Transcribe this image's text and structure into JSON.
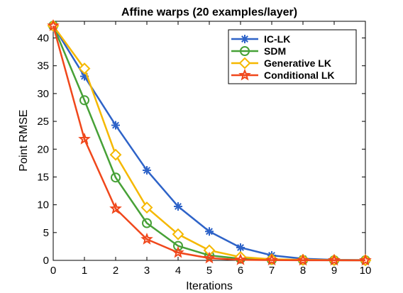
{
  "chart_data": {
    "type": "line",
    "title": "Affine warps (20 examples/layer)",
    "xlabel": "Iterations",
    "ylabel": "Point RMSE",
    "x": [
      0,
      1,
      2,
      3,
      4,
      5,
      6,
      7,
      8,
      9,
      10
    ],
    "xlim": [
      0,
      10
    ],
    "ylim": [
      0,
      43
    ],
    "xticks": [
      "0",
      "1",
      "2",
      "3",
      "4",
      "5",
      "6",
      "7",
      "8",
      "9",
      "10"
    ],
    "yticks": [
      "0",
      "5",
      "10",
      "15",
      "20",
      "25",
      "30",
      "35",
      "40"
    ],
    "grid": false,
    "legend_position": "top-right",
    "series": [
      {
        "name": "IC-LK",
        "color": "#2e63c8",
        "marker": "asterisk",
        "values": [
          42.2,
          33.1,
          24.3,
          16.2,
          9.7,
          5.2,
          2.3,
          0.9,
          0.3,
          0.1,
          0.05
        ]
      },
      {
        "name": "SDM",
        "color": "#47a137",
        "marker": "circle",
        "values": [
          42.2,
          28.8,
          14.9,
          6.7,
          2.6,
          0.9,
          0.3,
          0.1,
          0.05,
          0.02,
          0.01
        ]
      },
      {
        "name": "Generative LK",
        "color": "#f5b800",
        "marker": "diamond",
        "values": [
          42.2,
          34.5,
          19.0,
          9.5,
          4.7,
          1.8,
          0.6,
          0.2,
          0.1,
          0.05,
          0.02
        ]
      },
      {
        "name": "Conditional LK",
        "color": "#f0471b",
        "marker": "star",
        "values": [
          42.2,
          21.8,
          9.3,
          3.8,
          1.4,
          0.4,
          0.1,
          0.05,
          0.02,
          0.01,
          0.0
        ]
      }
    ]
  }
}
